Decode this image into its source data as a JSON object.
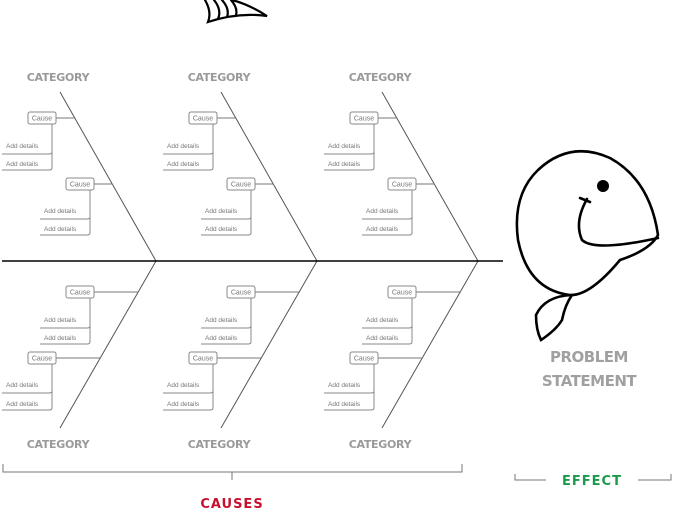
{
  "colors": {
    "causes": "#c8102e",
    "effect": "#1a9b4b",
    "category": "#9a9a9a",
    "line": "#555555"
  },
  "categories": [
    {
      "label": "CATEGORY",
      "causes": [
        {
          "label": "Cause",
          "details": [
            "Add details",
            "Add details"
          ]
        },
        {
          "label": "Cause",
          "details": [
            "Add details",
            "Add details"
          ]
        }
      ]
    },
    {
      "label": "CATEGORY",
      "causes": [
        {
          "label": "Cause",
          "details": [
            "Add details",
            "Add details"
          ]
        },
        {
          "label": "Cause",
          "details": [
            "Add details",
            "Add details"
          ]
        }
      ]
    },
    {
      "label": "CATEGORY",
      "causes": [
        {
          "label": "Cause",
          "details": [
            "Add details",
            "Add details"
          ]
        },
        {
          "label": "Cause",
          "details": [
            "Add details",
            "Add details"
          ]
        }
      ]
    },
    {
      "label": "CATEGORY",
      "causes": [
        {
          "label": "Cause",
          "details": [
            "Add details",
            "Add details"
          ]
        },
        {
          "label": "Cause",
          "details": [
            "Add details",
            "Add details"
          ]
        }
      ]
    },
    {
      "label": "CATEGORY",
      "causes": [
        {
          "label": "Cause",
          "details": [
            "Add details",
            "Add details"
          ]
        },
        {
          "label": "Cause",
          "details": [
            "Add details",
            "Add details"
          ]
        }
      ]
    },
    {
      "label": "CATEGORY",
      "causes": [
        {
          "label": "Cause",
          "details": [
            "Add details",
            "Add details"
          ]
        },
        {
          "label": "Cause",
          "details": [
            "Add details",
            "Add details"
          ]
        }
      ]
    }
  ],
  "problem": {
    "line1": "PROBLEM",
    "line2": "STATEMENT"
  },
  "causes_label": "CAUSES",
  "effect_label": "EFFECT"
}
